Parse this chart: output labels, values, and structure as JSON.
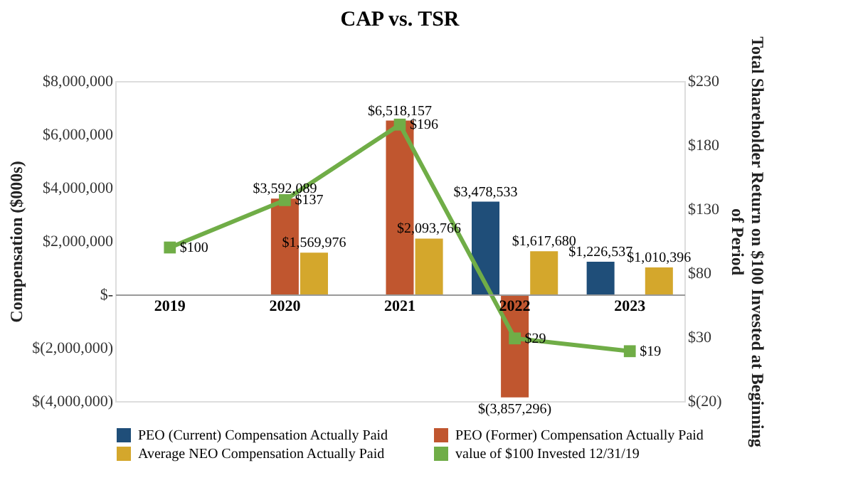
{
  "chart_data": {
    "type": "bar",
    "title": "CAP vs. TSR",
    "ylabel": "Compensation ($000s)",
    "y2label": "Total Shareholder Return on $100 Invested at Beginning of Period",
    "categories": [
      "2019",
      "2020",
      "2021",
      "2022",
      "2023"
    ],
    "series": [
      {
        "name": "PEO (Current) Compensation Actually Paid",
        "color": "#1f4e79",
        "values": [
          null,
          null,
          null,
          3478533,
          1226537
        ],
        "value_labels": [
          null,
          null,
          null,
          "$3,478,533",
          "$1,226,537"
        ]
      },
      {
        "name": "PEO (Former) Compensation Actually Paid",
        "color": "#c0562f",
        "values": [
          null,
          3592089,
          6518157,
          -3857296,
          null
        ],
        "value_labels": [
          null,
          "$3,592,089",
          "$6,518,157",
          "$(3,857,296)",
          null
        ]
      },
      {
        "name": "Average NEO Compensation Actually Paid",
        "color": "#d4a72c",
        "values": [
          null,
          1569976,
          2093766,
          1617680,
          1010396
        ],
        "value_labels": [
          null,
          "$1,569,976",
          "$2,093,766",
          "$1,617,680",
          "$1,010,396"
        ]
      },
      {
        "name": "value of $100 Invested 12/31/19",
        "type": "line",
        "axis": "y2",
        "color": "#70ad47",
        "marker": "square",
        "values": [
          100,
          137,
          196,
          29,
          19
        ],
        "value_labels": [
          "$100",
          "$137",
          "$196",
          "$29",
          "$19"
        ]
      }
    ],
    "ylim": [
      -4000000,
      8000000
    ],
    "yticks": [
      {
        "value": -4000000,
        "label": "$(4,000,000)"
      },
      {
        "value": -2000000,
        "label": "$(2,000,000)"
      },
      {
        "value": 0,
        "label": "$-"
      },
      {
        "value": 2000000,
        "label": "$2,000,000"
      },
      {
        "value": 4000000,
        "label": "$4,000,000"
      },
      {
        "value": 6000000,
        "label": "$6,000,000"
      },
      {
        "value": 8000000,
        "label": "$8,000,000"
      }
    ],
    "y2lim": [
      -20,
      230
    ],
    "y2ticks": [
      {
        "value": -20,
        "label": "$(20)"
      },
      {
        "value": 30,
        "label": "$30"
      },
      {
        "value": 80,
        "label": "$80"
      },
      {
        "value": 130,
        "label": "$130"
      },
      {
        "value": 180,
        "label": "$180"
      },
      {
        "value": 230,
        "label": "$230"
      }
    ],
    "grid": false,
    "legend": "bottom"
  }
}
